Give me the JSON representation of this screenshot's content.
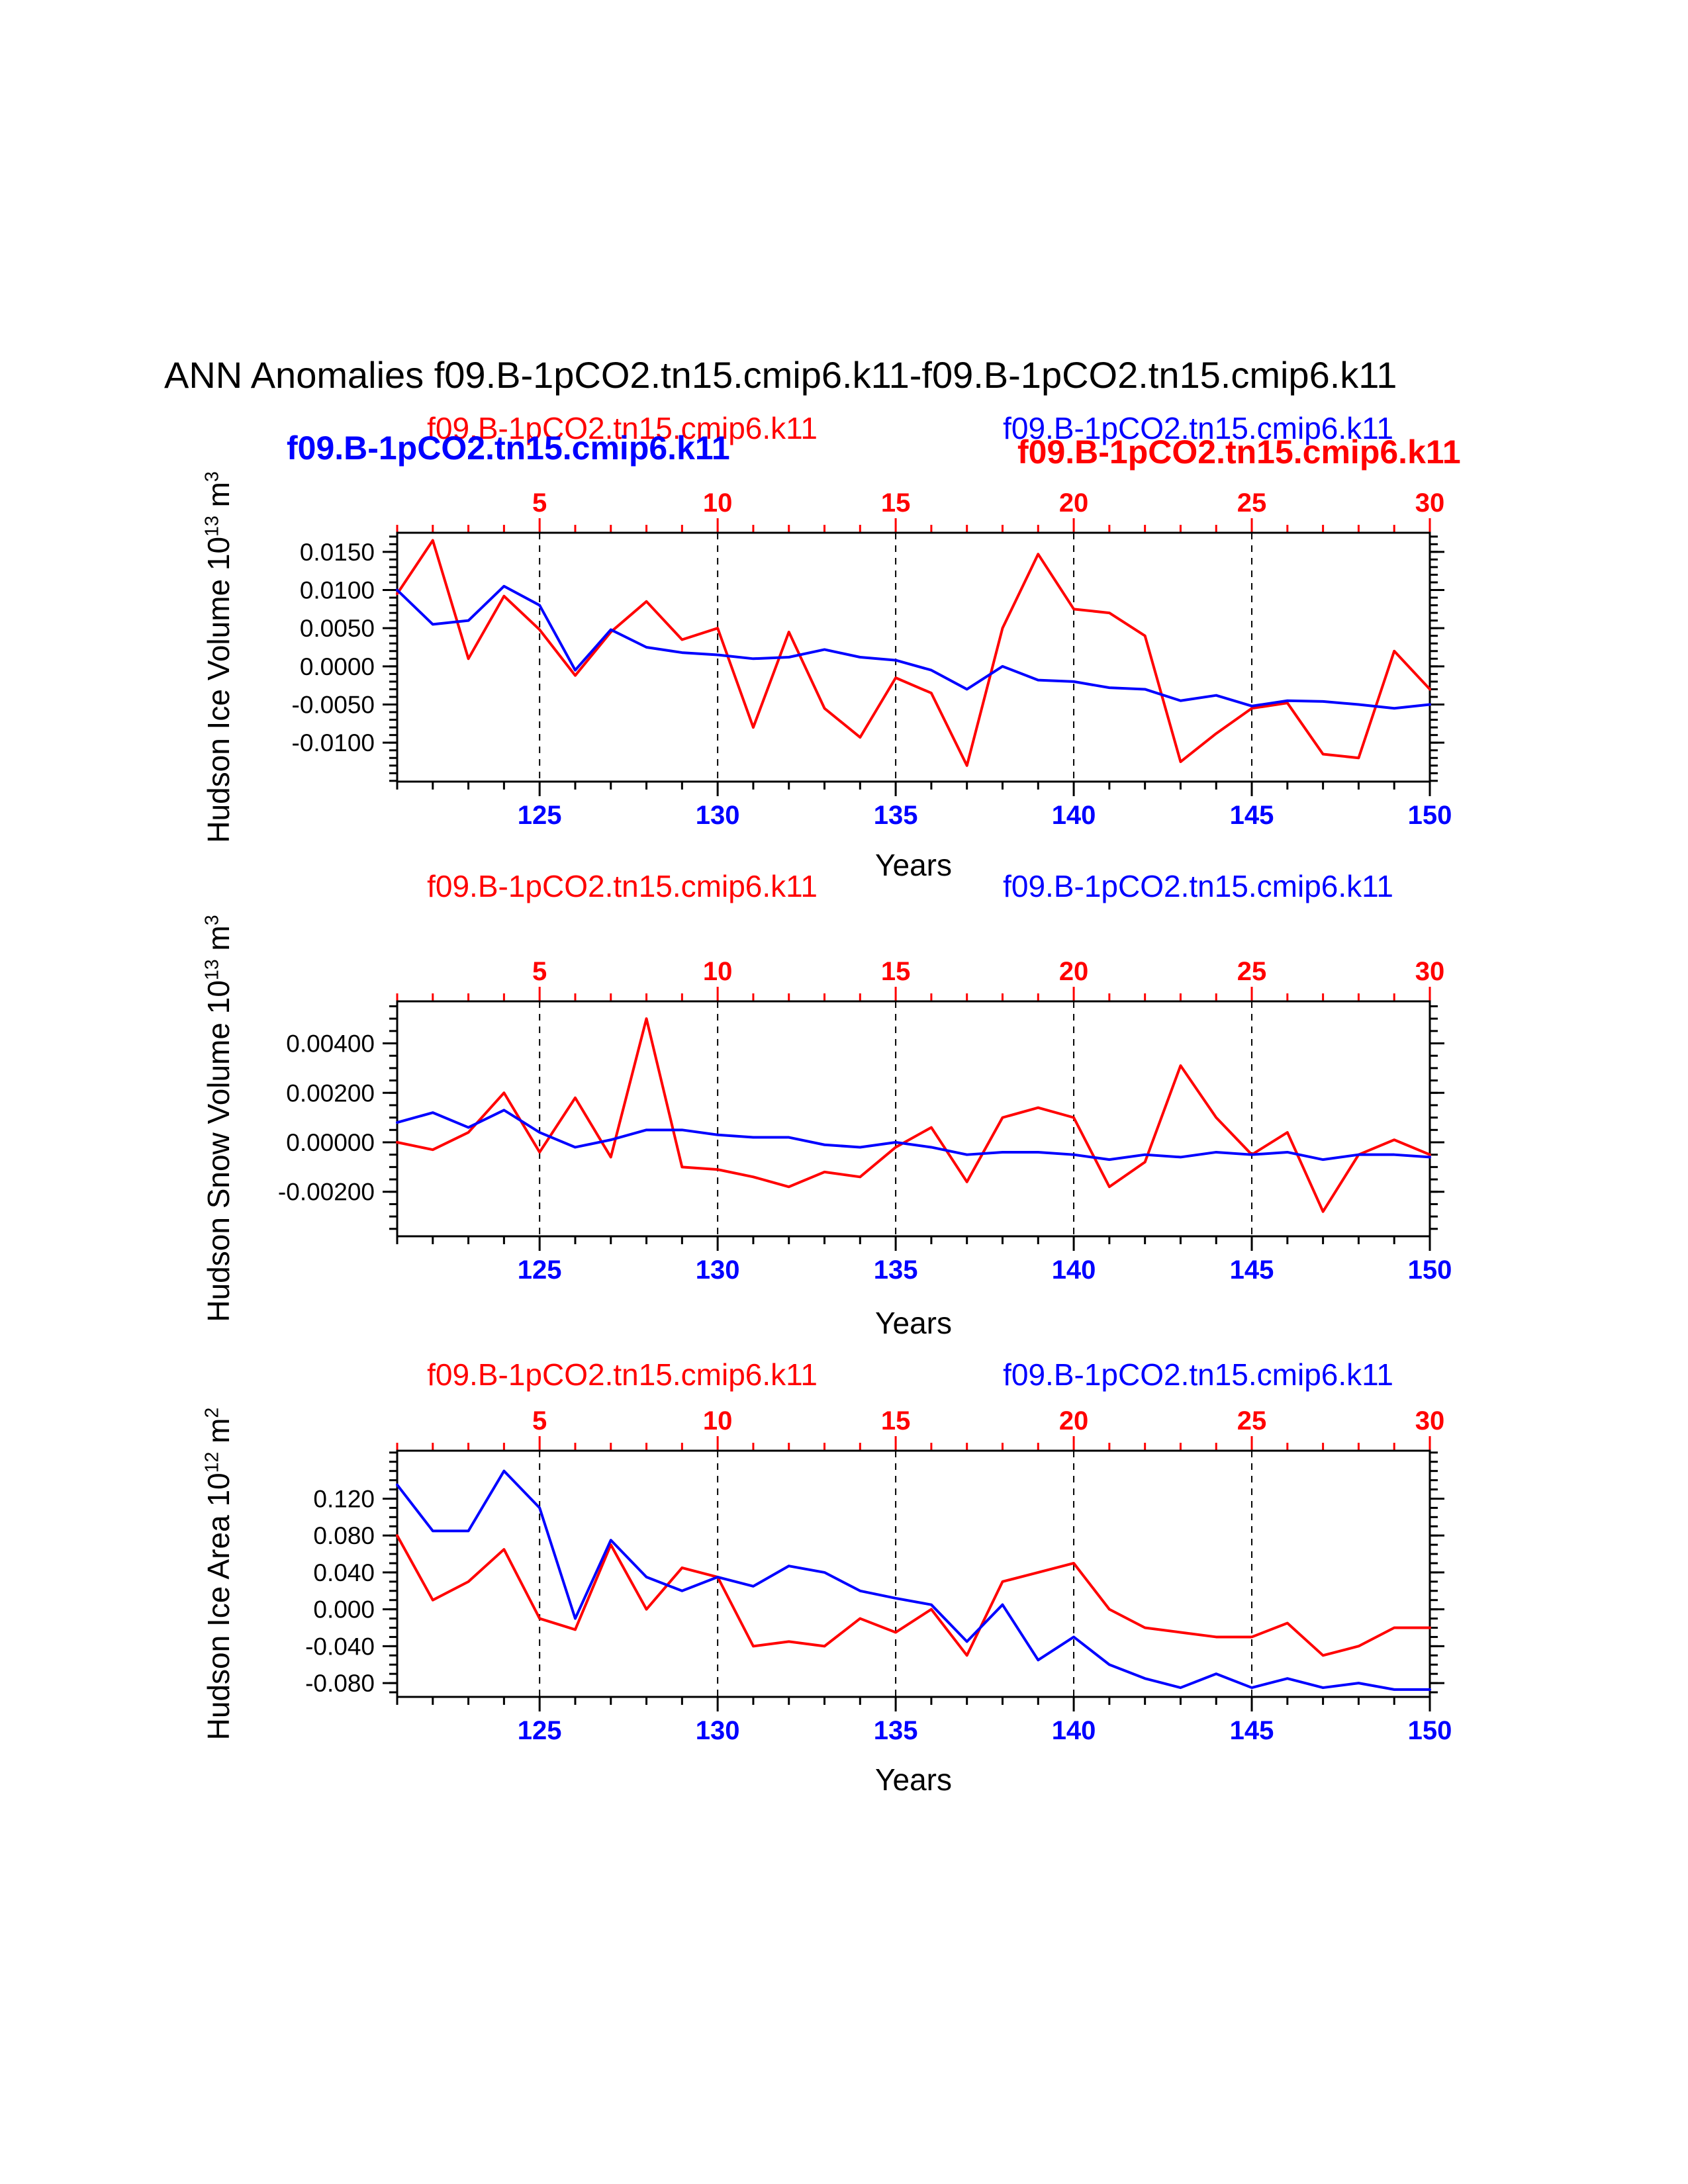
{
  "page": {
    "title": "ANN Anomalies f09.B-1pCO2.tn15.cmip6.k11-f09.B-1pCO2.tn15.cmip6.k11"
  },
  "colors": {
    "red": "#ff0000",
    "blue": "#0000ff",
    "axis": "#000000"
  },
  "chart_data": [
    {
      "id": "hudson-ice-volume",
      "type": "line",
      "title_left_red": "f09.B-1pCO2.tn15.cmip6.k11",
      "title_right_blue": "f09.B-1pCO2.tn15.cmip6.k11",
      "legend_bold_blue": "f09.B-1pCO2.tn15.cmip6.k11",
      "legend_bold_red": "f09.B-1pCO2.tn15.cmip6.k11",
      "ylabel": {
        "text": "Hudson Ice Volume 10",
        "sup1": "13",
        "mid": " m",
        "sup2": "3"
      },
      "xlabel": "Years",
      "x_bottom_ticks": [
        125,
        130,
        135,
        140,
        145,
        150
      ],
      "x_top_ticks": [
        5,
        10,
        15,
        20,
        25,
        30
      ],
      "gridlines_x": [
        125,
        130,
        135,
        140,
        145
      ],
      "y_ticks": [
        "0.0150",
        "0.0100",
        "0.0050",
        "0.0000",
        "-0.0050",
        "-0.0100"
      ],
      "y_tick_values": [
        0.015,
        0.01,
        0.005,
        0.0,
        -0.005,
        -0.01
      ],
      "y_minor_step": 0.001,
      "xlim_bottom": [
        121,
        150
      ],
      "xlim_top": [
        1,
        30
      ],
      "ylim": [
        -0.0151,
        0.0175
      ],
      "x": [
        121,
        122,
        123,
        124,
        125,
        126,
        127,
        128,
        129,
        130,
        131,
        132,
        133,
        134,
        135,
        136,
        137,
        138,
        139,
        140,
        141,
        142,
        143,
        144,
        145,
        146,
        147,
        148,
        149,
        150
      ],
      "series": [
        {
          "name": "f09.B-1pCO2.tn15.cmip6.k11",
          "color": "red",
          "values": [
            0.0095,
            0.0165,
            0.001,
            0.0092,
            0.0048,
            -0.0012,
            0.0045,
            0.0085,
            0.0035,
            0.005,
            -0.008,
            0.0045,
            -0.0055,
            -0.0093,
            -0.0015,
            -0.0035,
            -0.013,
            0.005,
            0.0147,
            0.0075,
            0.007,
            0.004,
            -0.0125,
            -0.0088,
            -0.0055,
            -0.0048,
            -0.0115,
            -0.012,
            0.002,
            -0.003
          ]
        },
        {
          "name": "f09.B-1pCO2.tn15.cmip6.k11",
          "color": "blue",
          "values": [
            0.01,
            0.0055,
            0.006,
            0.0105,
            0.008,
            -0.0005,
            0.0048,
            0.0025,
            0.0018,
            0.0015,
            0.001,
            0.0012,
            0.0022,
            0.0012,
            0.0008,
            -0.0005,
            -0.003,
            0.0,
            -0.0018,
            -0.002,
            -0.0028,
            -0.003,
            -0.0045,
            -0.0038,
            -0.0052,
            -0.0045,
            -0.0046,
            -0.005,
            -0.0055,
            -0.005
          ]
        }
      ]
    },
    {
      "id": "hudson-snow-volume",
      "type": "line",
      "title_left_red": "f09.B-1pCO2.tn15.cmip6.k11",
      "title_right_blue": "f09.B-1pCO2.tn15.cmip6.k11",
      "ylabel": {
        "text": "Hudson Snow Volume 10",
        "sup1": "13",
        "mid": " m",
        "sup2": "3"
      },
      "xlabel": "Years",
      "x_bottom_ticks": [
        125,
        130,
        135,
        140,
        145,
        150
      ],
      "x_top_ticks": [
        5,
        10,
        15,
        20,
        25,
        30
      ],
      "gridlines_x": [
        125,
        130,
        135,
        140,
        145
      ],
      "y_ticks": [
        "0.00400",
        "0.00200",
        "0.00000",
        "-0.00200"
      ],
      "y_tick_values": [
        0.004,
        0.002,
        0.0,
        -0.002
      ],
      "y_minor_step": 0.0005,
      "xlim_bottom": [
        121,
        150
      ],
      "xlim_top": [
        1,
        30
      ],
      "ylim": [
        -0.0038,
        0.0057
      ],
      "x": [
        121,
        122,
        123,
        124,
        125,
        126,
        127,
        128,
        129,
        130,
        131,
        132,
        133,
        134,
        135,
        136,
        137,
        138,
        139,
        140,
        141,
        142,
        143,
        144,
        145,
        146,
        147,
        148,
        149,
        150
      ],
      "series": [
        {
          "name": "f09.B-1pCO2.tn15.cmip6.k11",
          "color": "red",
          "values": [
            0.0,
            -0.0003,
            0.0004,
            0.002,
            -0.0004,
            0.0018,
            -0.0006,
            0.005,
            -0.001,
            -0.0011,
            -0.0014,
            -0.0018,
            -0.0012,
            -0.0014,
            -0.0002,
            0.0006,
            -0.0016,
            0.001,
            0.0014,
            0.001,
            -0.0018,
            -0.0008,
            0.0031,
            0.001,
            -0.0005,
            0.0004,
            -0.0028,
            -0.0005,
            0.0001,
            -0.0005
          ]
        },
        {
          "name": "f09.B-1pCO2.tn15.cmip6.k11",
          "color": "blue",
          "values": [
            0.0008,
            0.0012,
            0.0006,
            0.0013,
            0.0004,
            -0.0002,
            0.0001,
            0.0005,
            0.0005,
            0.0003,
            0.0002,
            0.0002,
            -0.0001,
            -0.0002,
            0.0,
            -0.0002,
            -0.0005,
            -0.0004,
            -0.0004,
            -0.0005,
            -0.0007,
            -0.0005,
            -0.0006,
            -0.0004,
            -0.0005,
            -0.0004,
            -0.0007,
            -0.0005,
            -0.0005,
            -0.0006
          ]
        }
      ]
    },
    {
      "id": "hudson-ice-area",
      "type": "line",
      "title_left_red": "f09.B-1pCO2.tn15.cmip6.k11",
      "title_right_blue": "f09.B-1pCO2.tn15.cmip6.k11",
      "ylabel": {
        "text": "Hudson Ice Area 10",
        "sup1": "12",
        "mid": " m",
        "sup2": "2"
      },
      "xlabel": "Years",
      "x_bottom_ticks": [
        125,
        130,
        135,
        140,
        145,
        150
      ],
      "x_top_ticks": [
        5,
        10,
        15,
        20,
        25,
        30
      ],
      "gridlines_x": [
        125,
        130,
        135,
        140,
        145
      ],
      "y_ticks": [
        "0.120",
        "0.080",
        "0.040",
        "0.000",
        "-0.040",
        "-0.080"
      ],
      "y_tick_values": [
        0.12,
        0.08,
        0.04,
        0.0,
        -0.04,
        -0.08
      ],
      "y_minor_step": 0.01,
      "xlim_bottom": [
        121,
        150
      ],
      "xlim_top": [
        1,
        30
      ],
      "ylim": [
        -0.095,
        0.172
      ],
      "x": [
        121,
        122,
        123,
        124,
        125,
        126,
        127,
        128,
        129,
        130,
        131,
        132,
        133,
        134,
        135,
        136,
        137,
        138,
        139,
        140,
        141,
        142,
        143,
        144,
        145,
        146,
        147,
        148,
        149,
        150
      ],
      "series": [
        {
          "name": "f09.B-1pCO2.tn15.cmip6.k11",
          "color": "red",
          "values": [
            0.08,
            0.01,
            0.03,
            0.065,
            -0.01,
            -0.022,
            0.07,
            0.0,
            0.045,
            0.035,
            -0.04,
            -0.035,
            -0.04,
            -0.01,
            -0.025,
            0.0,
            -0.05,
            0.03,
            0.04,
            0.05,
            0.0,
            -0.02,
            -0.025,
            -0.03,
            -0.03,
            -0.015,
            -0.05,
            -0.04,
            -0.02,
            -0.02
          ]
        },
        {
          "name": "f09.B-1pCO2.tn15.cmip6.k11",
          "color": "blue",
          "values": [
            0.135,
            0.085,
            0.085,
            0.15,
            0.11,
            -0.01,
            0.075,
            0.035,
            0.02,
            0.035,
            0.025,
            0.047,
            0.04,
            0.02,
            0.012,
            0.005,
            -0.035,
            0.005,
            -0.055,
            -0.03,
            -0.06,
            -0.075,
            -0.085,
            -0.07,
            -0.085,
            -0.075,
            -0.085,
            -0.08,
            -0.087,
            -0.087
          ]
        }
      ]
    }
  ]
}
